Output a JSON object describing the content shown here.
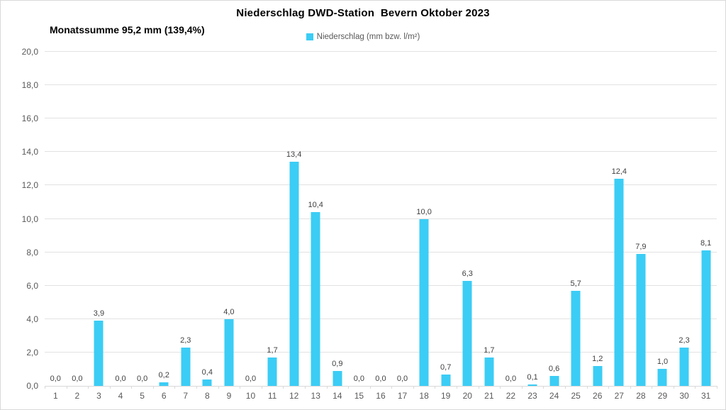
{
  "chart_data": {
    "type": "bar",
    "title": "Niederschlag DWD-Station  Bevern Oktober 2023",
    "subtitle": "Monatssumme 95,2 mm (139,4%)",
    "legend": [
      {
        "label": "Niederschlag (mm bzw. l/m²)",
        "color": "#3bcdf5"
      }
    ],
    "legend_position": "top-center",
    "categories": [
      "1",
      "2",
      "3",
      "4",
      "5",
      "6",
      "7",
      "8",
      "9",
      "10",
      "11",
      "12",
      "13",
      "14",
      "15",
      "16",
      "17",
      "18",
      "19",
      "20",
      "21",
      "22",
      "23",
      "24",
      "25",
      "26",
      "27",
      "28",
      "29",
      "30",
      "31"
    ],
    "values": [
      0.0,
      0.0,
      3.9,
      0.0,
      0.0,
      0.2,
      2.3,
      0.4,
      4.0,
      0.0,
      1.7,
      13.4,
      10.4,
      0.9,
      0.0,
      0.0,
      0.0,
      10.0,
      0.7,
      6.3,
      1.7,
      0.0,
      0.1,
      0.6,
      5.7,
      1.2,
      12.4,
      7.9,
      1.0,
      2.3,
      8.1
    ],
    "value_labels": [
      "0,0",
      "0,0",
      "3,9",
      "0,0",
      "0,0",
      "0,2",
      "2,3",
      "0,4",
      "4,0",
      "0,0",
      "1,7",
      "13,4",
      "10,4",
      "0,9",
      "0,0",
      "0,0",
      "0,0",
      "10,0",
      "0,7",
      "6,3",
      "1,7",
      "0,0",
      "0,1",
      "0,6",
      "5,7",
      "1,2",
      "12,4",
      "7,9",
      "1,0",
      "2,3",
      "8,1"
    ],
    "xlabel": "",
    "ylabel": "",
    "ylim": [
      0,
      20
    ],
    "ytick_step": 2,
    "ytick_values": [
      0,
      2,
      4,
      6,
      8,
      10,
      12,
      14,
      16,
      18,
      20
    ],
    "ytick_labels": [
      "0,0",
      "2,0",
      "4,0",
      "6,0",
      "8,0",
      "10,0",
      "12,0",
      "14,0",
      "16,0",
      "18,0",
      "20,0"
    ],
    "grid": true
  },
  "colors": {
    "bar": "#3bcdf5",
    "gridline": "#e2e2e2",
    "axis_line": "#d9d9d9",
    "axis_text": "#595959",
    "value_text": "#404040",
    "title_text": "#000000",
    "frame_border": "#d9d9d9"
  }
}
